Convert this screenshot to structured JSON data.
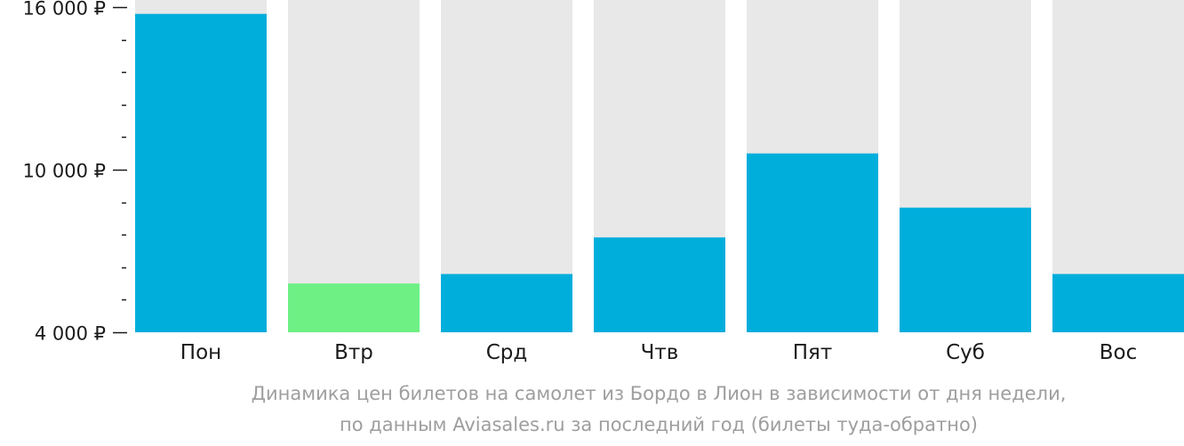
{
  "chart_data": {
    "type": "bar",
    "categories": [
      "Пон",
      "Втр",
      "Срд",
      "Чтв",
      "Пят",
      "Суб",
      "Вос"
    ],
    "values": [
      15750,
      5800,
      6150,
      7500,
      10600,
      8600,
      6150
    ],
    "highlight_index": 1,
    "ylim": [
      4000,
      16000
    ],
    "yticks": [
      {
        "value": 16000,
        "label": "16 000 ₽"
      },
      {
        "value": 10000,
        "label": "10 000 ₽"
      },
      {
        "value": 4000,
        "label": "4 000 ₽"
      }
    ],
    "minor_tick_step": 1200,
    "grid": false,
    "colors": {
      "bar": "#00aedb",
      "highlight": "#6ef085",
      "track": "#e8e8e8",
      "axis_text": "#1a1a1a",
      "caption": "#9e9e9e"
    }
  },
  "caption": {
    "line1": "Динамика цен билетов на самолет из Бордо в Лион в зависимости от дня недели,",
    "line2": "по данным Aviasales.ru за последний год (билеты туда-обратно)"
  }
}
